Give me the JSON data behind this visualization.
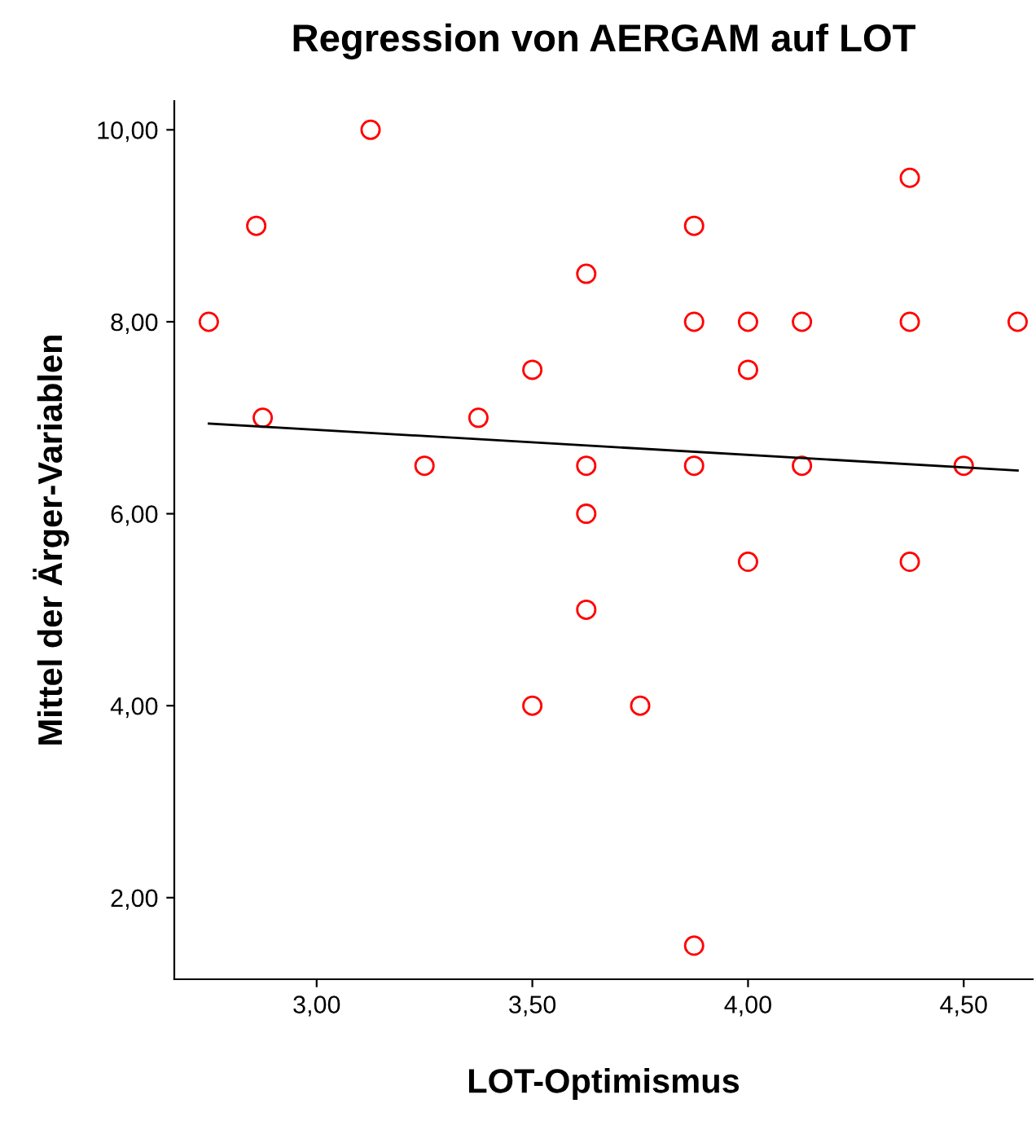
{
  "chart_data": {
    "type": "scatter",
    "title": "Regression von AERGAM auf LOT",
    "xlabel": "LOT-Optimismus",
    "ylabel": "Mittel der Ärger-Variablen",
    "xlim": [
      2.67,
      4.66
    ],
    "ylim": [
      1.15,
      10.3
    ],
    "xticks": [
      {
        "value": 3.0,
        "label": "3,00"
      },
      {
        "value": 3.5,
        "label": "3,50"
      },
      {
        "value": 4.0,
        "label": "4,00"
      },
      {
        "value": 4.5,
        "label": "4,50"
      }
    ],
    "yticks": [
      {
        "value": 2,
        "label": "2,00"
      },
      {
        "value": 4,
        "label": "4,00"
      },
      {
        "value": 6,
        "label": "6,00"
      },
      {
        "value": 8,
        "label": "8,00"
      },
      {
        "value": 10,
        "label": "10,00"
      }
    ],
    "grid": false,
    "legend": false,
    "series": [
      {
        "color": "#ff0000",
        "marker": "circle",
        "x": [
          2.75,
          2.86,
          2.875,
          3.125,
          3.25,
          3.375,
          3.5,
          3.5,
          3.625,
          3.625,
          3.625,
          3.625,
          3.75,
          3.875,
          3.875,
          3.875,
          3.875,
          4.0,
          4.0,
          4.0,
          4.125,
          4.125,
          4.375,
          4.375,
          4.375,
          4.5,
          4.625
        ],
        "values": [
          8,
          9,
          7,
          10,
          6.5,
          7,
          7.5,
          4,
          8.5,
          6.5,
          6,
          5,
          4,
          9,
          8,
          6.5,
          1.5,
          8,
          7.5,
          5.5,
          8,
          6.5,
          9.5,
          8,
          5.5,
          6.5,
          8
        ]
      },
      {
        "type": "line",
        "color": "#000000",
        "marker": "none",
        "line_style": "solid",
        "x": [
          2.75,
          4.625
        ],
        "values": [
          6.94,
          6.45
        ]
      }
    ]
  }
}
